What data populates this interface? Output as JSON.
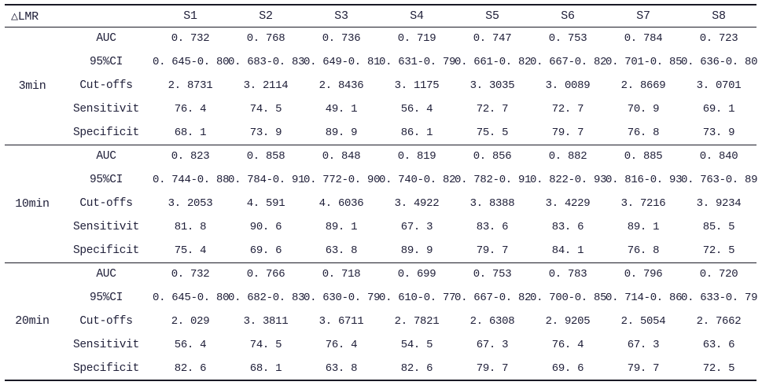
{
  "page": {
    "background": "#ffffff",
    "text_color": "#20203a",
    "rule_color": "#1a1a26"
  },
  "table": {
    "corner_label": "△LMR",
    "columns": [
      "S1",
      "S2",
      "S3",
      "S4",
      "S5",
      "S6",
      "S7",
      "S8"
    ],
    "groups": [
      {
        "label": "3min",
        "rows": [
          {
            "metric": "AUC",
            "values": [
              "0. 732",
              "0. 768",
              "0. 736",
              "0. 719",
              "0. 747",
              "0. 753",
              "0. 784",
              "0. 723"
            ]
          },
          {
            "metric": "95%CI",
            "values": [
              "0. 645-0. 80",
              "0. 683-0. 83",
              "0. 649-0. 81",
              "0. 631-0. 79",
              "0. 661-0. 82",
              "0. 667-0. 82",
              "0. 701-0. 85",
              "0. 636-0. 80"
            ]
          },
          {
            "metric": "Cut-offs",
            "values": [
              "2. 8731",
              "3. 2114",
              "2. 8436",
              "3. 1175",
              "3. 3035",
              "3. 0089",
              "2. 8669",
              "3. 0701"
            ]
          },
          {
            "metric": "Sensitivit",
            "values": [
              "76. 4",
              "74. 5",
              "49. 1",
              "56. 4",
              "72. 7",
              "72. 7",
              "70. 9",
              "69. 1"
            ]
          },
          {
            "metric": "Specificit",
            "values": [
              "68. 1",
              "73. 9",
              "89. 9",
              "86. 1",
              "75. 5",
              "79. 7",
              "76. 8",
              "73. 9"
            ]
          }
        ]
      },
      {
        "label": "10min",
        "rows": [
          {
            "metric": "AUC",
            "values": [
              "0. 823",
              "0. 858",
              "0. 848",
              "0. 819",
              "0. 856",
              "0. 882",
              "0. 885",
              "0. 840"
            ]
          },
          {
            "metric": "95%CI",
            "values": [
              "0. 744-0. 88",
              "0. 784-0. 91",
              "0. 772-0. 90",
              "0. 740-0. 82",
              "0. 782-0. 91",
              "0. 822-0. 93",
              "0. 816-0. 93",
              "0. 763-0. 89"
            ]
          },
          {
            "metric": "Cut-offs",
            "values": [
              "3. 2053",
              "4. 591",
              "4. 6036",
              "3. 4922",
              "3. 8388",
              "3. 4229",
              "3. 7216",
              "3. 9234"
            ]
          },
          {
            "metric": "Sensitivit",
            "values": [
              "81. 8",
              "90. 6",
              "89. 1",
              "67. 3",
              "83. 6",
              "83. 6",
              "89. 1",
              "85. 5"
            ]
          },
          {
            "metric": "Specificit",
            "values": [
              "75. 4",
              "69. 6",
              "63. 8",
              "89. 9",
              "79. 7",
              "84. 1",
              "76. 8",
              "72. 5"
            ]
          }
        ]
      },
      {
        "label": "20min",
        "rows": [
          {
            "metric": "AUC",
            "values": [
              "0. 732",
              "0. 766",
              "0. 718",
              "0. 699",
              "0. 753",
              "0. 783",
              "0. 796",
              "0. 720"
            ]
          },
          {
            "metric": "95%CI",
            "values": [
              "0. 645-0. 80",
              "0. 682-0. 83",
              "0. 630-0. 79",
              "0. 610-0. 77",
              "0. 667-0. 82",
              "0. 700-0. 85",
              "0. 714-0. 86",
              "0. 633-0. 79"
            ]
          },
          {
            "metric": "Cut-offs",
            "values": [
              "2. 029",
              "3. 3811",
              "3. 6711",
              "2. 7821",
              "2. 6308",
              "2. 9205",
              "2. 5054",
              "2. 7662"
            ]
          },
          {
            "metric": "Sensitivit",
            "values": [
              "56. 4",
              "74. 5",
              "76. 4",
              "54. 5",
              "67. 3",
              "76. 4",
              "67. 3",
              "63. 6"
            ]
          },
          {
            "metric": "Specificit",
            "values": [
              "82. 6",
              "68. 1",
              "63. 8",
              "82. 6",
              "79. 7",
              "69. 6",
              "79. 7",
              "72. 5"
            ]
          }
        ]
      }
    ]
  }
}
